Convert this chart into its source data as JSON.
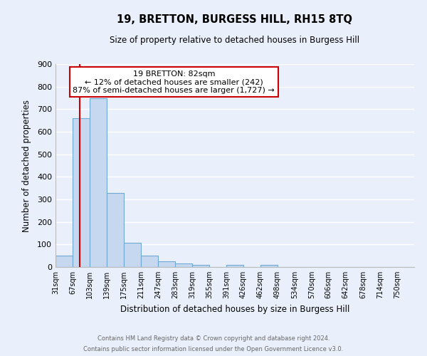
{
  "title": "19, BRETTON, BURGESS HILL, RH15 8TQ",
  "subtitle": "Size of property relative to detached houses in Burgess Hill",
  "xlabel": "Distribution of detached houses by size in Burgess Hill",
  "ylabel": "Number of detached properties",
  "bar_labels": [
    "31sqm",
    "67sqm",
    "103sqm",
    "139sqm",
    "175sqm",
    "211sqm",
    "247sqm",
    "283sqm",
    "319sqm",
    "355sqm",
    "391sqm",
    "426sqm",
    "462sqm",
    "498sqm",
    "534sqm",
    "570sqm",
    "606sqm",
    "642sqm",
    "678sqm",
    "714sqm",
    "750sqm"
  ],
  "bar_values": [
    52,
    660,
    748,
    330,
    106,
    52,
    26,
    15,
    10,
    0,
    10,
    0,
    10,
    0,
    0,
    0,
    0,
    0,
    0,
    0,
    0
  ],
  "bar_color": "#c5d8f0",
  "bar_edgecolor": "#6eaad4",
  "property_line_x": 82,
  "annotation_title": "19 BRETTON: 82sqm",
  "annotation_line1": "← 12% of detached houses are smaller (242)",
  "annotation_line2": "87% of semi-detached houses are larger (1,727) →",
  "annotation_box_color": "#ffffff",
  "annotation_box_edgecolor": "#cc0000",
  "ylim": [
    0,
    900
  ],
  "yticks": [
    0,
    100,
    200,
    300,
    400,
    500,
    600,
    700,
    800,
    900
  ],
  "vline_color": "#cc0000",
  "footer1": "Contains HM Land Registry data © Crown copyright and database right 2024.",
  "footer2": "Contains public sector information licensed under the Open Government Licence v3.0.",
  "bg_color": "#eaf0fb",
  "grid_color": "#ffffff",
  "bin_width": 36
}
